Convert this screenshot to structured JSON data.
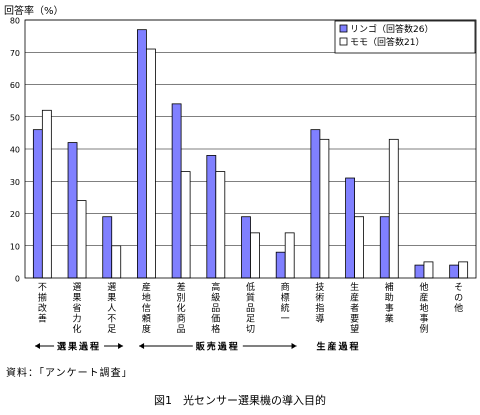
{
  "chart_data": {
    "type": "bar",
    "ylabel": "回答率（%）",
    "ylim": [
      0,
      80
    ],
    "yticks": [
      0,
      10,
      20,
      30,
      40,
      50,
      60,
      70,
      80
    ],
    "categories": [
      "不揃改善",
      "選果省力化",
      "選果人不足",
      "産地信頼度",
      "差別化商品",
      "高級品価格",
      "低質品足切",
      "商標統一",
      "技術指導",
      "生産者要望",
      "補助事業",
      "他産地事例",
      "その他"
    ],
    "series": [
      {
        "name": "リンゴ（回答数26）",
        "color": "#8080ff",
        "values": [
          46,
          42,
          19,
          77,
          54,
          38,
          19,
          8,
          46,
          31,
          19,
          4,
          4
        ]
      },
      {
        "name": "モモ（回答数21）",
        "color": "#ffffff",
        "values": [
          52,
          24,
          10,
          71,
          33,
          33,
          14,
          14,
          43,
          19,
          43,
          5,
          5
        ]
      }
    ],
    "groups": [
      {
        "label": "選果過程",
        "from": 0,
        "to": 2
      },
      {
        "label": "販売過程",
        "from": 3,
        "to": 7
      },
      {
        "label": "生産過程",
        "from": 8,
        "to": 12
      }
    ],
    "legend_position": "top-right"
  },
  "source": "資料：「アンケート調査」",
  "caption": "図1　光センサー選果機の導入目的"
}
